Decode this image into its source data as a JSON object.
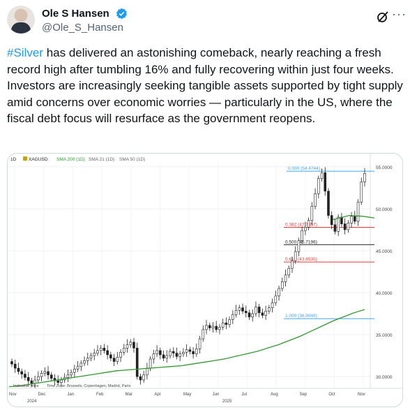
{
  "author": {
    "name": "Ole S Hansen",
    "handle": "@Ole_S_Hansen"
  },
  "tweet": {
    "hashtag": "#Silver",
    "text": " has delivered an astonishing comeback, nearly reaching a fresh record high after tumbling 16% and fully recovering within just four weeks. Investors are increasingly seeking tangible assets supported by tight supply amid concerns over economic worries — particularly in the US, where the fiscal debt focus will resurface as the government reopens."
  },
  "icons": {
    "verified": "verified-badge-icon",
    "grok": "grok-icon",
    "more": "more-icon"
  },
  "colors": {
    "link": "#1d9bf0",
    "sma": "#2e9a2e",
    "fib_red": "#e53935",
    "fib_blue": "#42a5f5",
    "candle": "#222222"
  },
  "chart_data": {
    "type": "candlestick",
    "header": {
      "interval": "1D",
      "symbol": "XAGUSD",
      "sma200": "SMA 200 (1D)",
      "sma21": "SMA 21 (1D)",
      "sma50": "SMA 50 (1D)"
    },
    "y_ticks": [
      "55.0000",
      "50.0000",
      "45.0000",
      "40.0000",
      "35.0000",
      "30.0000"
    ],
    "y_tick_values": [
      55,
      50,
      45,
      40,
      35,
      30
    ],
    "ylim": [
      28.6,
      55.4
    ],
    "x_ticks": [
      "Nov",
      "Dec",
      "Jan",
      "Feb",
      "Mar",
      "Apr",
      "May",
      "Jun",
      "Jul",
      "Aug",
      "Sep",
      "Oct",
      "Nov"
    ],
    "year_labels": [
      "2024",
      "2025"
    ],
    "fib_levels": [
      {
        "label": "0.000 (54.4744)",
        "value": 54.4744,
        "color": "#42a5f5"
      },
      {
        "label": "0.382 (47.7857)",
        "value": 47.7857,
        "color": "#e53935"
      },
      {
        "label": "0.500 (45.7196)",
        "value": 45.7196,
        "color": "#222222"
      },
      {
        "label": "0.618 (43.6535)",
        "value": 43.6535,
        "color": "#e53935"
      },
      {
        "label": "1.000 (36.9048)",
        "value": 36.9048,
        "color": "#42a5f5"
      }
    ],
    "closes": [
      31.5,
      31.0,
      30.6,
      30.3,
      29.9,
      29.5,
      29.2,
      29.6,
      30.0,
      30.4,
      30.6,
      30.2,
      29.8,
      29.5,
      29.3,
      29.6,
      29.9,
      30.2,
      30.5,
      30.9,
      31.2,
      31.6,
      31.9,
      32.2,
      32.5,
      32.8,
      33.1,
      33.4,
      33.1,
      32.6,
      32.2,
      31.8,
      32.3,
      32.9,
      33.4,
      33.8,
      34.1,
      33.4,
      30.0,
      29.6,
      30.2,
      31.0,
      32.1,
      32.7,
      33.1,
      32.6,
      32.2,
      32.5,
      33.0,
      32.8,
      32.4,
      32.7,
      32.9,
      33.2,
      33.0,
      32.7,
      33.3,
      34.5,
      35.6,
      36.1,
      35.8,
      36.0,
      35.6,
      35.9,
      36.4,
      36.2,
      36.8,
      37.4,
      37.9,
      38.2,
      37.8,
      37.6,
      37.1,
      37.5,
      38.3,
      37.6,
      37.3,
      37.8,
      38.2,
      38.8,
      39.6,
      40.5,
      41.3,
      42.1,
      42.9,
      43.8,
      44.9,
      46.2,
      47.4,
      47.8,
      48.6,
      50.3,
      51.8,
      53.6,
      54.3,
      52.1,
      49.2,
      48.1,
      47.3,
      49.0,
      48.2,
      47.5,
      48.3,
      49.1,
      48.5,
      50.8,
      53.2,
      54.2
    ],
    "sma200": [
      28.8,
      28.9,
      29.1,
      29.3,
      29.5,
      29.7,
      29.9,
      30.1,
      30.3,
      30.5,
      30.7,
      30.8,
      30.9,
      31.0,
      31.1,
      31.2,
      31.3,
      31.5,
      31.7,
      31.9,
      32.1,
      32.4,
      32.7,
      33.0,
      33.4,
      33.8,
      34.3,
      34.8,
      35.4,
      36.0,
      36.6,
      37.1,
      37.6,
      38.0
    ],
    "sma200_x": [
      0,
      5,
      10,
      15,
      20,
      25,
      30,
      35,
      40,
      45,
      50,
      55,
      60,
      65,
      70,
      75,
      80,
      85,
      90,
      95,
      100,
      105,
      110,
      115,
      120,
      125,
      130,
      135,
      140,
      145,
      150,
      155,
      160,
      165
    ],
    "sma_short": [
      48.7,
      49.2,
      49.1,
      48.9
    ],
    "footnote": {
      "left": "Indicative price",
      "zone": "Time Zone: Brussels, Copenhagen, Madrid, Paris"
    }
  }
}
